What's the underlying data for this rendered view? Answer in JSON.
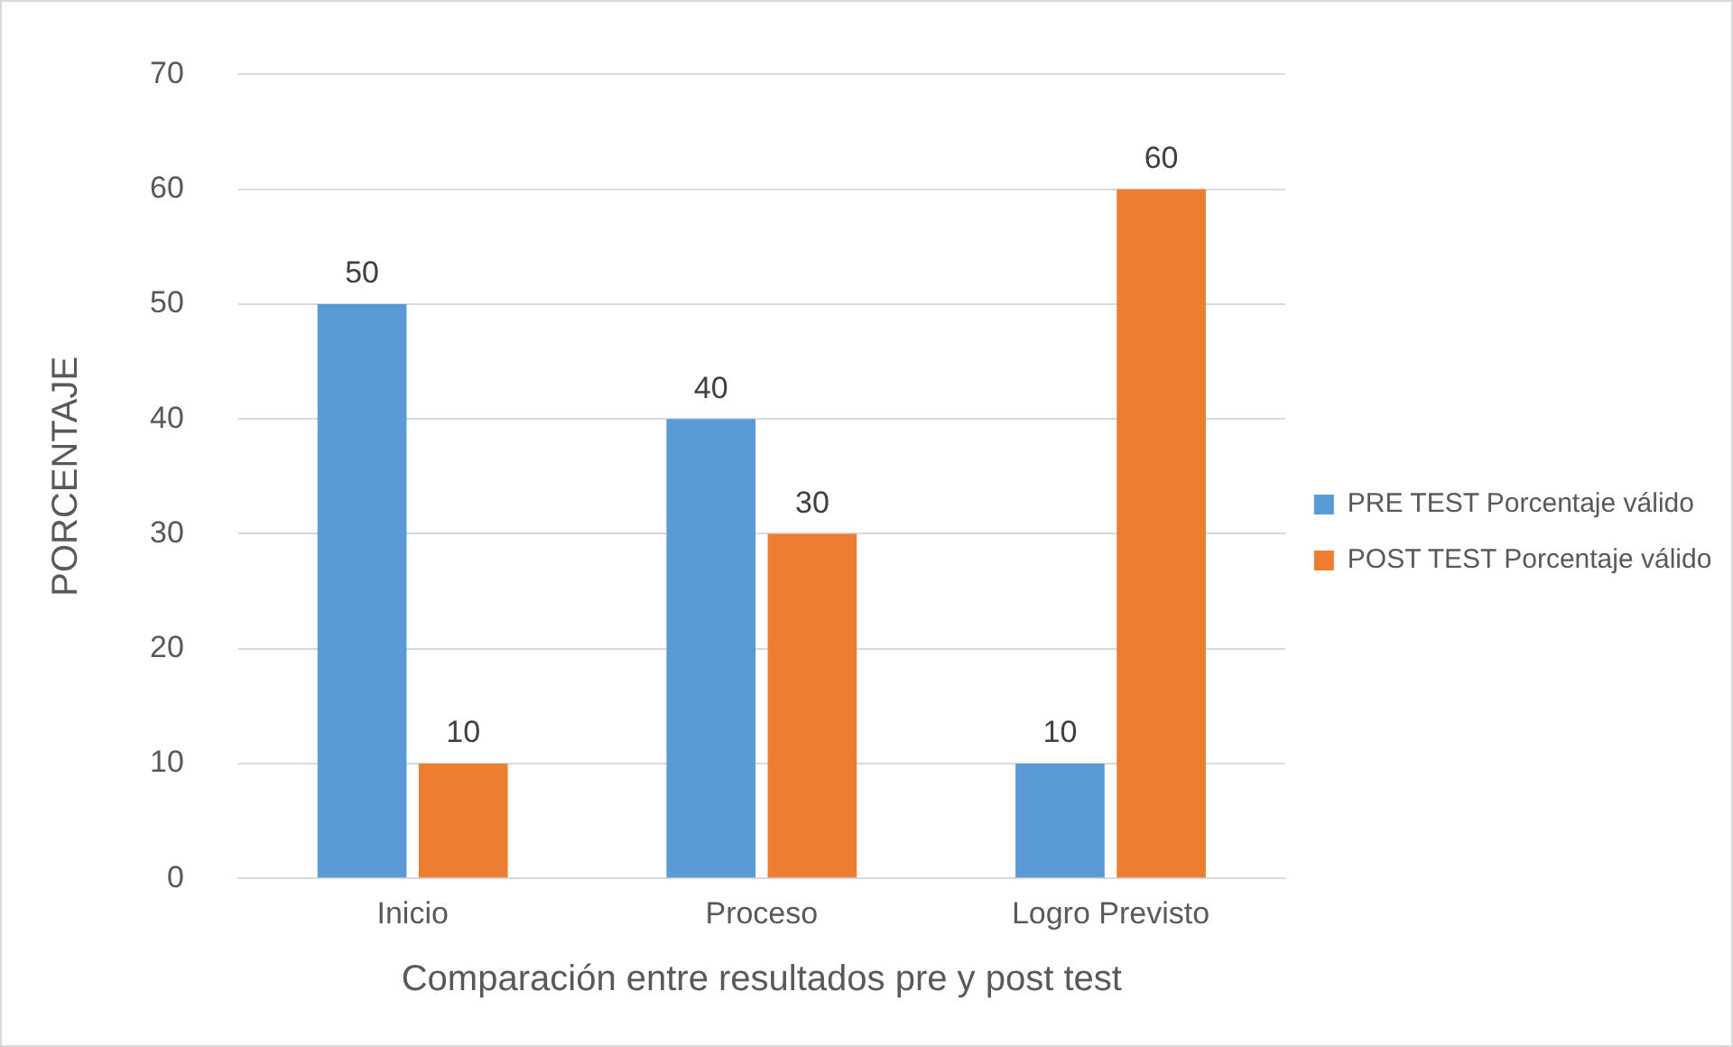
{
  "chart_data": {
    "type": "bar",
    "xlabel": "Comparación entre resultados pre y post test",
    "ylabel": "PORCENTAJE",
    "categories": [
      "Inicio",
      "Proceso",
      "Logro Previsto"
    ],
    "series": [
      {
        "name": "PRE TEST Porcentaje válido",
        "color": "#5b9bd5",
        "values": [
          50,
          40,
          10
        ]
      },
      {
        "name": "POST TEST Porcentaje válido",
        "color": "#ed7d31",
        "values": [
          10,
          30,
          60
        ]
      }
    ],
    "ylim": [
      0,
      70
    ],
    "yticks": [
      0,
      10,
      20,
      30,
      40,
      50,
      60,
      70
    ],
    "grid": "y",
    "legend": "right",
    "data_labels": true
  }
}
